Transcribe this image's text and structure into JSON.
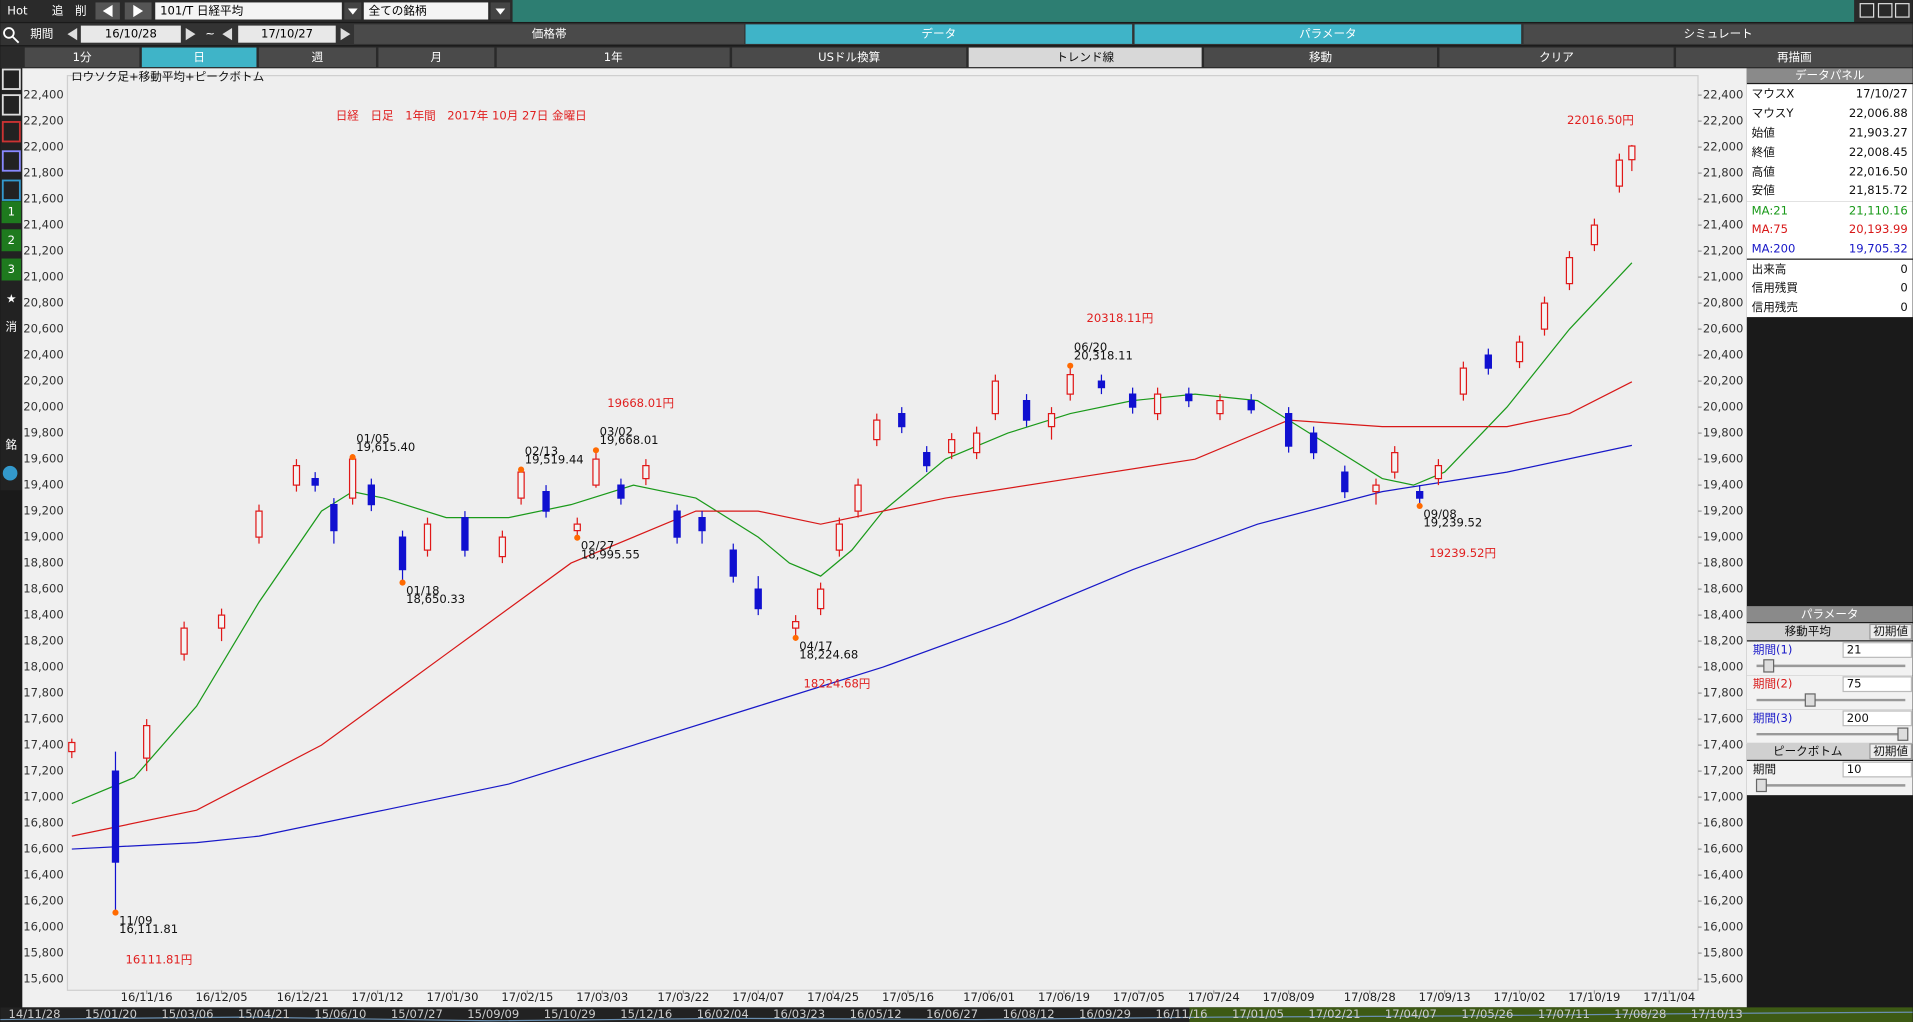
{
  "toolbar": {
    "buttons": [
      "Hot",
      "追",
      "削"
    ],
    "symbol": "101/T 日経平均",
    "universe": "全ての銘柄"
  },
  "period": {
    "label": "期間",
    "from": "16/10/28",
    "sep": "~",
    "to": "17/10/27"
  },
  "tabs": [
    "価格帯",
    "データ",
    "パラメータ",
    "シミュレート"
  ],
  "buttons": [
    "1分",
    "日",
    "週",
    "月",
    "1年",
    "USドル換算",
    "トレンド線",
    "移動",
    "クリア",
    "再描画"
  ],
  "sidebar": [
    "1",
    "2",
    "3",
    "★",
    "消",
    "銘"
  ],
  "chart_data": {
    "type": "candlestick",
    "title": "日経　日足　1年間　2017年 10月 27日 金曜日",
    "subtitle": "ロウソク足+移動平均+ピークボトム",
    "up_color": "#e01818",
    "down_color": "#1010d0",
    "grid": false,
    "xlim": [
      -0.7,
      260.6
    ],
    "xticks": [
      {
        "value": 12,
        "label": "16/11/16"
      },
      {
        "value": 24,
        "label": "16/12/05"
      },
      {
        "value": 37,
        "label": "16/12/21"
      },
      {
        "value": 49,
        "label": "17/01/12"
      },
      {
        "value": 61,
        "label": "17/01/30"
      },
      {
        "value": 73,
        "label": "17/02/15"
      },
      {
        "value": 85,
        "label": "17/03/03"
      },
      {
        "value": 98,
        "label": "17/03/22"
      },
      {
        "value": 110,
        "label": "17/04/07"
      },
      {
        "value": 122,
        "label": "17/04/25"
      },
      {
        "value": 134,
        "label": "17/05/16"
      },
      {
        "value": 147,
        "label": "17/06/01"
      },
      {
        "value": 159,
        "label": "17/06/19"
      },
      {
        "value": 171,
        "label": "17/07/05"
      },
      {
        "value": 183,
        "label": "17/07/24"
      },
      {
        "value": 195,
        "label": "17/08/09"
      },
      {
        "value": 208,
        "label": "17/08/28"
      },
      {
        "value": 220,
        "label": "17/09/13"
      },
      {
        "value": 232,
        "label": "17/10/02"
      },
      {
        "value": 244,
        "label": "17/10/19"
      },
      {
        "value": 256,
        "label": "17/11/04"
      }
    ],
    "ylim": [
      15514,
      22550
    ],
    "yticks": [
      {
        "value": 22400,
        "label": "22,400"
      },
      {
        "value": 22200,
        "label": "22,200"
      },
      {
        "value": 22000,
        "label": "22,000"
      },
      {
        "value": 21800,
        "label": "21,800"
      },
      {
        "value": 21600,
        "label": "21,600"
      },
      {
        "value": 21400,
        "label": "21,400"
      },
      {
        "value": 21200,
        "label": "21,200"
      },
      {
        "value": 21000,
        "label": "21,000"
      },
      {
        "value": 20800,
        "label": "20,800"
      },
      {
        "value": 20600,
        "label": "20,600"
      },
      {
        "value": 20400,
        "label": "20,400"
      },
      {
        "value": 20200,
        "label": "20,200"
      },
      {
        "value": 20000,
        "label": "20,000"
      },
      {
        "value": 19800,
        "label": "19,800"
      },
      {
        "value": 19600,
        "label": "19,600"
      },
      {
        "value": 19400,
        "label": "19,400"
      },
      {
        "value": 19200,
        "label": "19,200"
      },
      {
        "value": 19000,
        "label": "19,000"
      },
      {
        "value": 18800,
        "label": "18,800"
      },
      {
        "value": 18600,
        "label": "18,600"
      },
      {
        "value": 18400,
        "label": "18,400"
      },
      {
        "value": 18200,
        "label": "18,200"
      },
      {
        "value": 18000,
        "label": "18,000"
      },
      {
        "value": 17800,
        "label": "17,800"
      },
      {
        "value": 17600,
        "label": "17,600"
      },
      {
        "value": 17400,
        "label": "17,400"
      },
      {
        "value": 17200,
        "label": "17,200"
      },
      {
        "value": 17000,
        "label": "17,000"
      },
      {
        "value": 16800,
        "label": "16,800"
      },
      {
        "value": 16600,
        "label": "16,600"
      },
      {
        "value": 16400,
        "label": "16,400"
      },
      {
        "value": 16200,
        "label": "16,200"
      },
      {
        "value": 16000,
        "label": "16,000"
      },
      {
        "value": 15800,
        "label": "15,800"
      },
      {
        "value": 15600,
        "label": "15,600"
      }
    ],
    "candles": [
      {
        "x": 0,
        "open": 17350,
        "high": 17450,
        "low": 17300,
        "close": 17420
      },
      {
        "x": 7,
        "open": 17200,
        "high": 17350,
        "low": 16111.81,
        "close": 16500
      },
      {
        "x": 12,
        "open": 17300,
        "high": 17600,
        "low": 17200,
        "close": 17550
      },
      {
        "x": 18,
        "open": 18100,
        "high": 18350,
        "low": 18050,
        "close": 18300
      },
      {
        "x": 24,
        "open": 18300,
        "high": 18450,
        "low": 18200,
        "close": 18400
      },
      {
        "x": 30,
        "open": 19000,
        "high": 19250,
        "low": 18950,
        "close": 19200
      },
      {
        "x": 36,
        "open": 19400,
        "high": 19600,
        "low": 19350,
        "close": 19550
      },
      {
        "x": 39,
        "open": 19450,
        "high": 19500,
        "low": 19350,
        "close": 19400
      },
      {
        "x": 42,
        "open": 19250,
        "high": 19300,
        "low": 18950,
        "close": 19050
      },
      {
        "x": 45,
        "open": 19300,
        "high": 19615.4,
        "low": 19250,
        "close": 19600
      },
      {
        "x": 48,
        "open": 19400,
        "high": 19450,
        "low": 19200,
        "close": 19250
      },
      {
        "x": 53,
        "open": 19000,
        "high": 19050,
        "low": 18650.33,
        "close": 18750
      },
      {
        "x": 57,
        "open": 18900,
        "high": 19150,
        "low": 18850,
        "close": 19100
      },
      {
        "x": 63,
        "open": 19150,
        "high": 19200,
        "low": 18850,
        "close": 18900
      },
      {
        "x": 69,
        "open": 18850,
        "high": 19050,
        "low": 18800,
        "close": 19000
      },
      {
        "x": 72,
        "open": 19300,
        "high": 19519.44,
        "low": 19250,
        "close": 19500
      },
      {
        "x": 76,
        "open": 19350,
        "high": 19400,
        "low": 19150,
        "close": 19200
      },
      {
        "x": 81,
        "open": 19050,
        "high": 19150,
        "low": 18995.55,
        "close": 19100
      },
      {
        "x": 84,
        "open": 19400,
        "high": 19668.01,
        "low": 19380,
        "close": 19600
      },
      {
        "x": 88,
        "open": 19400,
        "high": 19450,
        "low": 19250,
        "close": 19300
      },
      {
        "x": 92,
        "open": 19450,
        "high": 19600,
        "low": 19400,
        "close": 19550
      },
      {
        "x": 97,
        "open": 19200,
        "high": 19250,
        "low": 18950,
        "close": 19000
      },
      {
        "x": 101,
        "open": 19150,
        "high": 19200,
        "low": 18950,
        "close": 19050
      },
      {
        "x": 106,
        "open": 18900,
        "high": 18950,
        "low": 18650,
        "close": 18700
      },
      {
        "x": 110,
        "open": 18600,
        "high": 18700,
        "low": 18400,
        "close": 18450
      },
      {
        "x": 116,
        "open": 18300,
        "high": 18400,
        "low": 18224.68,
        "close": 18350
      },
      {
        "x": 120,
        "open": 18450,
        "high": 18650,
        "low": 18400,
        "close": 18600
      },
      {
        "x": 123,
        "open": 18900,
        "high": 19150,
        "low": 18850,
        "close": 19100
      },
      {
        "x": 126,
        "open": 19200,
        "high": 19450,
        "low": 19150,
        "close": 19400
      },
      {
        "x": 129,
        "open": 19750,
        "high": 19950,
        "low": 19700,
        "close": 19900
      },
      {
        "x": 133,
        "open": 19950,
        "high": 20000,
        "low": 19800,
        "close": 19850
      },
      {
        "x": 137,
        "open": 19650,
        "high": 19700,
        "low": 19500,
        "close": 19550
      },
      {
        "x": 141,
        "open": 19650,
        "high": 19800,
        "low": 19600,
        "close": 19750
      },
      {
        "x": 145,
        "open": 19650,
        "high": 19850,
        "low": 19600,
        "close": 19800
      },
      {
        "x": 148,
        "open": 19950,
        "high": 20250,
        "low": 19900,
        "close": 20200
      },
      {
        "x": 153,
        "open": 20050,
        "high": 20100,
        "low": 19850,
        "close": 19900
      },
      {
        "x": 157,
        "open": 19850,
        "high": 20000,
        "low": 19750,
        "close": 19950
      },
      {
        "x": 160,
        "open": 20100,
        "high": 20318.11,
        "low": 20050,
        "close": 20250
      },
      {
        "x": 165,
        "open": 20200,
        "high": 20250,
        "low": 20100,
        "close": 20150
      },
      {
        "x": 170,
        "open": 20100,
        "high": 20150,
        "low": 19950,
        "close": 20000
      },
      {
        "x": 174,
        "open": 19950,
        "high": 20150,
        "low": 19900,
        "close": 20100
      },
      {
        "x": 179,
        "open": 20100,
        "high": 20150,
        "low": 20000,
        "close": 20050
      },
      {
        "x": 184,
        "open": 19950,
        "high": 20100,
        "low": 19900,
        "close": 20050
      },
      {
        "x": 189,
        "open": 20050,
        "high": 20100,
        "low": 19950,
        "close": 19980
      },
      {
        "x": 195,
        "open": 19950,
        "high": 20000,
        "low": 19650,
        "close": 19700
      },
      {
        "x": 199,
        "open": 19800,
        "high": 19850,
        "low": 19600,
        "close": 19650
      },
      {
        "x": 204,
        "open": 19500,
        "high": 19550,
        "low": 19300,
        "close": 19350
      },
      {
        "x": 209,
        "open": 19350,
        "high": 19450,
        "low": 19250,
        "close": 19400
      },
      {
        "x": 212,
        "open": 19500,
        "high": 19700,
        "low": 19450,
        "close": 19650
      },
      {
        "x": 216,
        "open": 19350,
        "high": 19400,
        "low": 19239.52,
        "close": 19300
      },
      {
        "x": 219,
        "open": 19450,
        "high": 19600,
        "low": 19400,
        "close": 19550
      },
      {
        "x": 223,
        "open": 20100,
        "high": 20350,
        "low": 20050,
        "close": 20300
      },
      {
        "x": 227,
        "open": 20400,
        "high": 20450,
        "low": 20250,
        "close": 20300
      },
      {
        "x": 232,
        "open": 20350,
        "high": 20550,
        "low": 20300,
        "close": 20500
      },
      {
        "x": 236,
        "open": 20600,
        "high": 20850,
        "low": 20550,
        "close": 20800
      },
      {
        "x": 240,
        "open": 20950,
        "high": 21200,
        "low": 20900,
        "close": 21150
      },
      {
        "x": 244,
        "open": 21250,
        "high": 21450,
        "low": 21200,
        "close": 21400
      },
      {
        "x": 248,
        "open": 21700,
        "high": 21950,
        "low": 21650,
        "close": 21900
      },
      {
        "x": 250,
        "open": 21903.27,
        "high": 22016.5,
        "low": 21815.72,
        "close": 22008.45
      }
    ],
    "series": [
      {
        "color": "#1a9a1a",
        "x": [
          0,
          10,
          20,
          30,
          40,
          45,
          50,
          60,
          70,
          80,
          90,
          100,
          110,
          115,
          120,
          125,
          130,
          140,
          150,
          160,
          170,
          180,
          190,
          200,
          210,
          215,
          220,
          230,
          240,
          250
        ],
        "values": [
          16950,
          17150,
          17700,
          18500,
          19200,
          19350,
          19300,
          19150,
          19150,
          19250,
          19400,
          19300,
          19000,
          18800,
          18700,
          18900,
          19200,
          19600,
          19800,
          19950,
          20050,
          20100,
          20050,
          19750,
          19450,
          19400,
          19500,
          20000,
          20600,
          21110.16
        ]
      },
      {
        "color": "#d81818",
        "x": [
          0,
          20,
          40,
          60,
          80,
          100,
          110,
          120,
          140,
          160,
          180,
          195,
          210,
          230,
          240,
          250
        ],
        "values": [
          16700,
          16900,
          17400,
          18100,
          18800,
          19200,
          19200,
          19100,
          19300,
          19450,
          19600,
          19900,
          19850,
          19850,
          19950,
          20193.99
        ]
      },
      {
        "color": "#1818c8",
        "x": [
          0,
          20,
          30,
          50,
          70,
          90,
          110,
          130,
          150,
          170,
          190,
          210,
          230,
          250
        ],
        "values": [
          16600,
          16650,
          16700,
          16900,
          17100,
          17400,
          17700,
          18000,
          18350,
          18750,
          19100,
          19350,
          19500,
          19705.32
        ]
      }
    ],
    "peaks": [
      {
        "x": 7,
        "date": "11/09",
        "value": 16111.81,
        "label": "16,111.81"
      },
      {
        "x": 45,
        "date": "01/05",
        "value": 19615.4,
        "label": "19,615.40"
      },
      {
        "x": 53,
        "date": "01/18",
        "value": 18650.33,
        "label": "18,650.33"
      },
      {
        "x": 72,
        "date": "02/13",
        "value": 19519.44,
        "label": "19,519.44"
      },
      {
        "x": 81,
        "date": "02/27",
        "value": 18995.55,
        "label": "18,995.55"
      },
      {
        "x": 84,
        "date": "03/02",
        "value": 19668.01,
        "label": "19,668.01"
      },
      {
        "x": 116,
        "date": "04/17",
        "value": 18224.68,
        "label": "18,224.68"
      },
      {
        "x": 160,
        "date": "06/20",
        "value": 20318.11,
        "label": "20,318.11"
      },
      {
        "x": 216,
        "date": "09/08",
        "value": 19239.52,
        "label": "19,239.52"
      }
    ],
    "annotations": [
      "16111.81円",
      "19668.01円",
      "18224.68円",
      "20318.11円",
      "19239.52円",
      "22016.50円"
    ]
  },
  "data_panel": {
    "title": "データパネル",
    "rows": [
      [
        "マウスX",
        "17/10/27"
      ],
      [
        "マウスY",
        "22,006.88"
      ],
      [
        "始値",
        "21,903.27"
      ],
      [
        "終値",
        "22,008.45"
      ],
      [
        "高値",
        "22,016.50"
      ],
      [
        "安値",
        "21,815.72"
      ],
      [
        "MA:21",
        "21,110.16"
      ],
      [
        "MA:75",
        "20,193.99"
      ],
      [
        "MA:200",
        "19,705.32"
      ],
      [
        "出来高",
        "0"
      ],
      [
        "信用残買",
        "0"
      ],
      [
        "信用残売",
        "0"
      ]
    ]
  },
  "parameter_panel": {
    "title": "パラメータ",
    "sections": [
      {
        "title": "移動平均",
        "reset": "初期値",
        "rows": [
          {
            "label": "期間(1)",
            "value": 21
          },
          {
            "label": "期間(2)",
            "value": 75
          },
          {
            "label": "期間(3)",
            "value": 200
          }
        ]
      },
      {
        "title": "ピークボトム",
        "reset": "初期値",
        "rows": [
          {
            "label": "期間",
            "value": 10
          }
        ]
      }
    ]
  },
  "overview_dates": [
    "14/11/28",
    "15/01/20",
    "15/03/06",
    "15/04/21",
    "15/06/10",
    "15/07/27",
    "15/09/09",
    "15/10/29",
    "15/12/16",
    "16/02/04",
    "16/03/23",
    "16/05/12",
    "16/06/27",
    "16/08/12",
    "16/09/29",
    "16/11/16",
    "17/01/05",
    "17/02/21",
    "17/04/07",
    "17/05/26",
    "17/07/11",
    "17/08/28",
    "17/10/13"
  ]
}
